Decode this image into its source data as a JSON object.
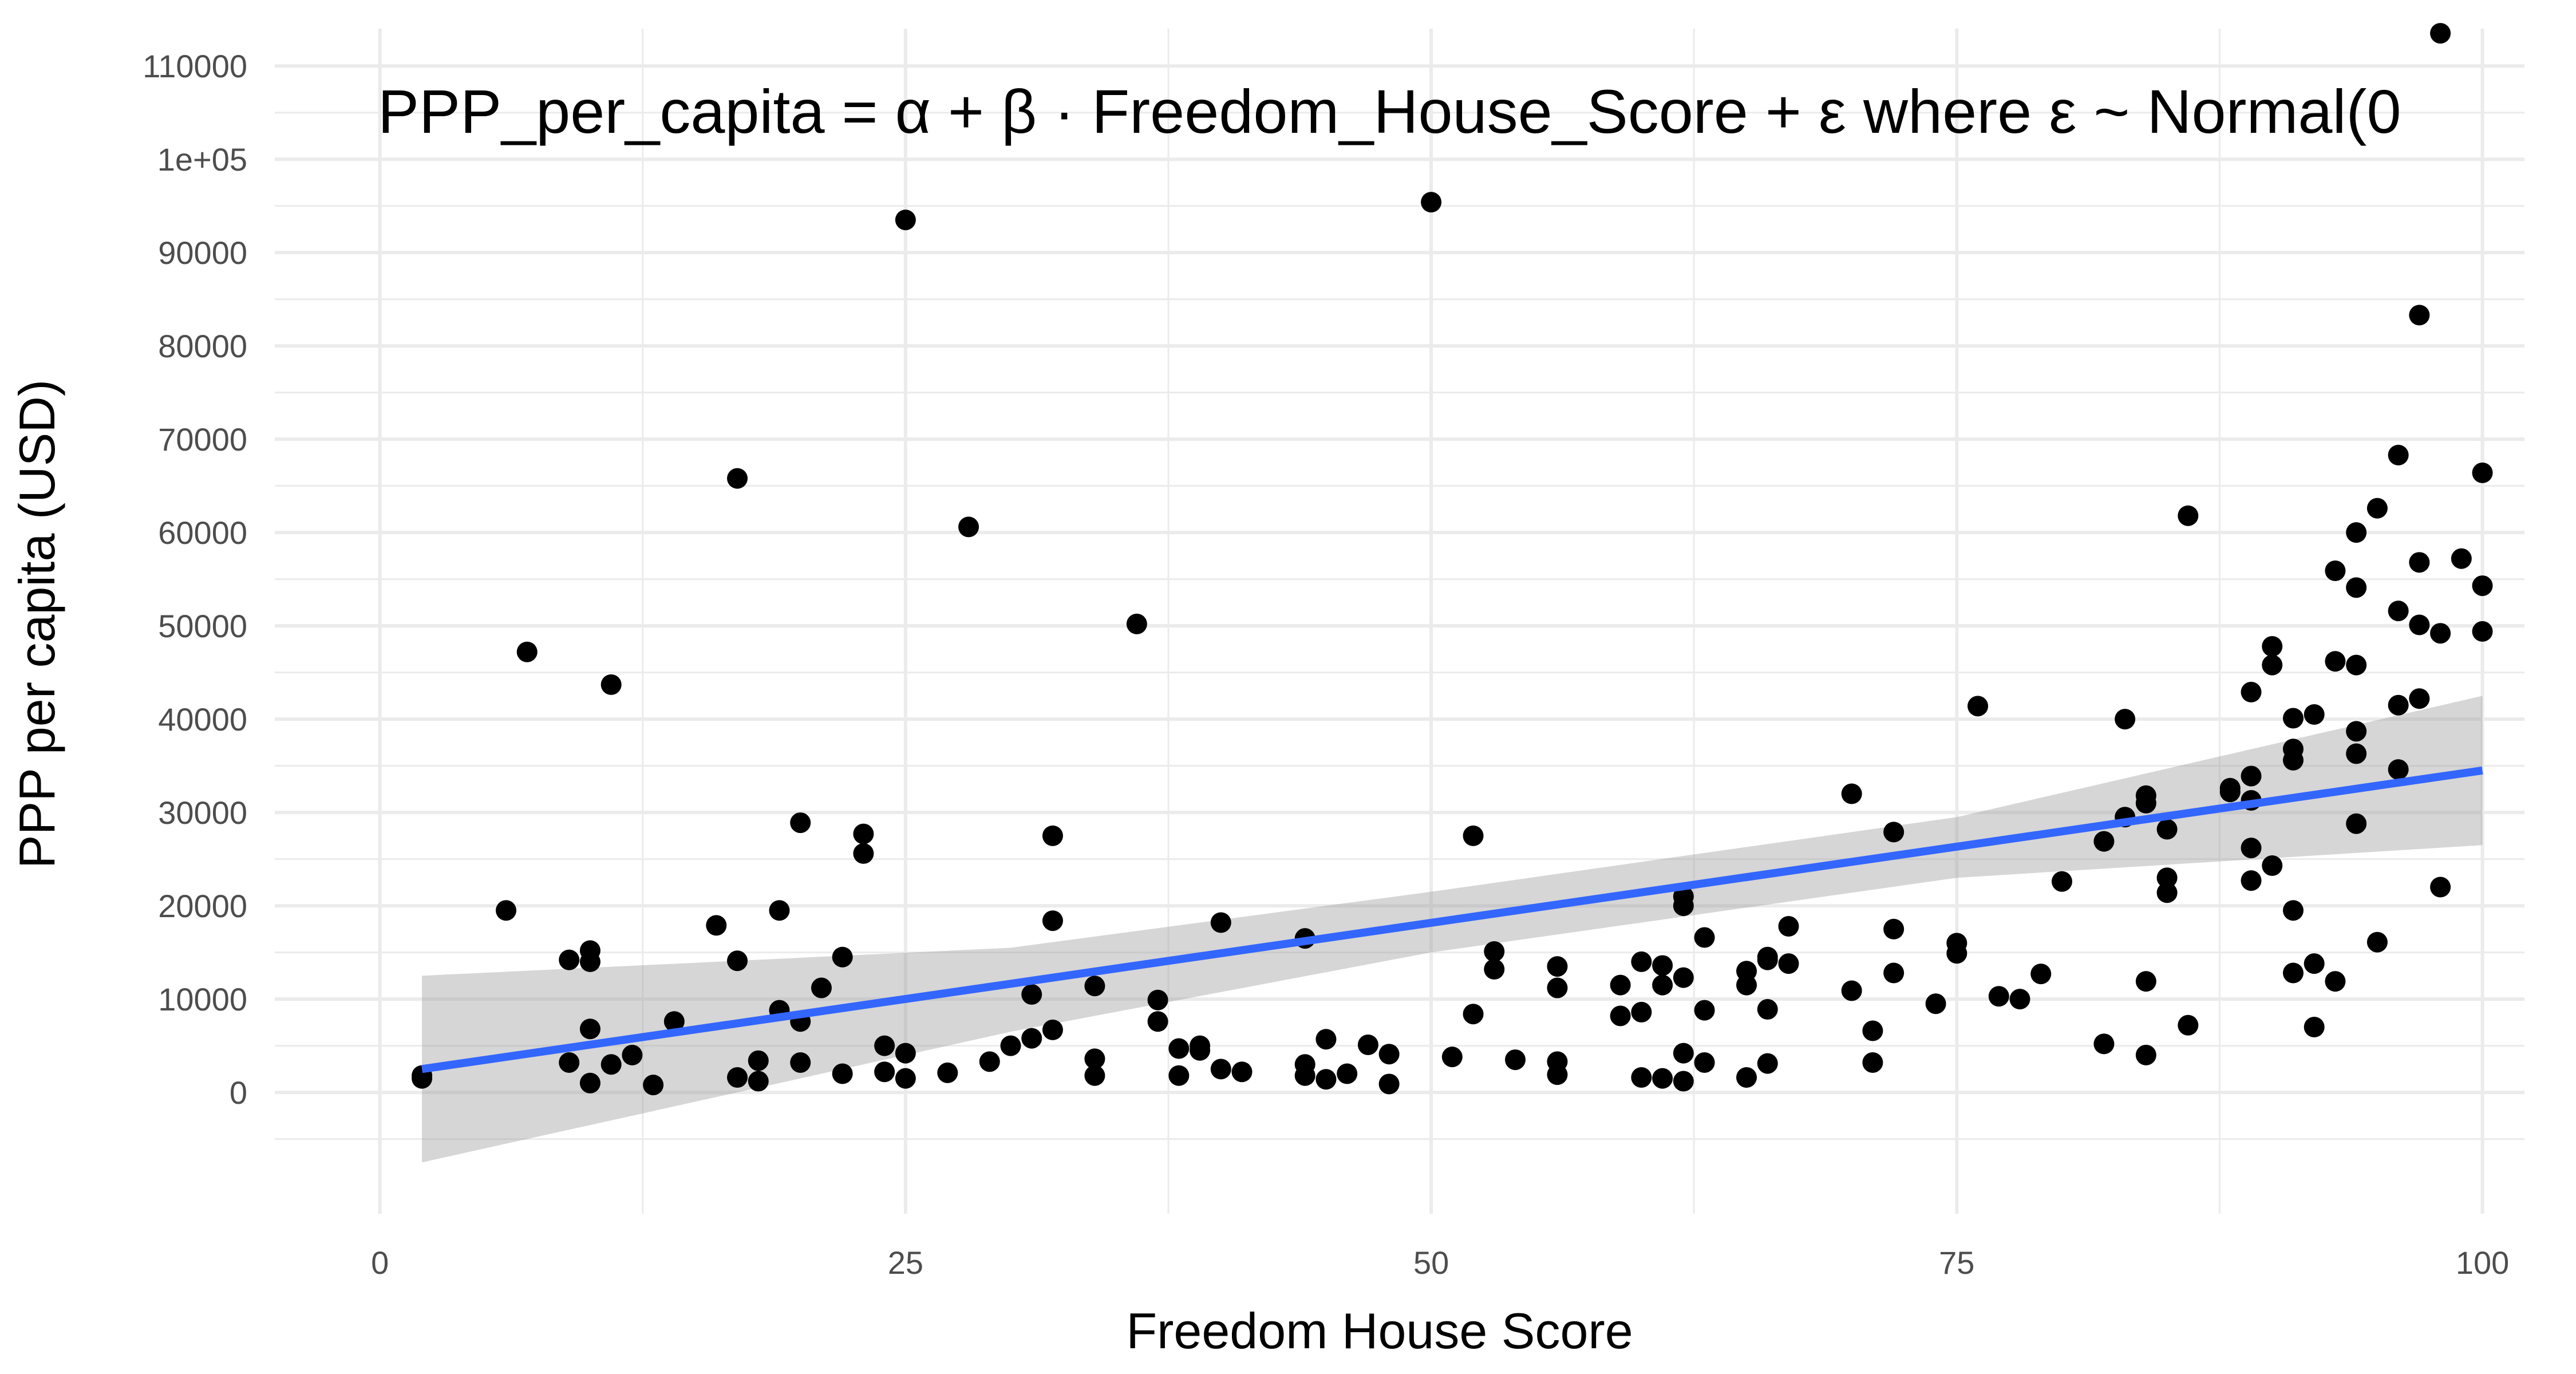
{
  "chart_data": {
    "type": "scatter",
    "xlabel": "Freedom House Score",
    "ylabel": "PPP per capita (USD)",
    "annotation": "PPP_per_capita = α + β · Freedom_House_Score + ε  where  ε ~ Normal(0",
    "xlim": [
      -5,
      102
    ],
    "ylim": [
      -13000,
      114000
    ],
    "x_ticks": [
      0,
      25,
      50,
      75,
      100
    ],
    "x_tick_labels": [
      "0",
      "25",
      "50",
      "75",
      "100"
    ],
    "y_ticks": [
      0,
      10000,
      20000,
      30000,
      40000,
      50000,
      60000,
      70000,
      80000,
      90000,
      100000,
      110000
    ],
    "y_tick_labels": [
      "0",
      "10000",
      "20000",
      "30000",
      "40000",
      "50000",
      "60000",
      "70000",
      "80000",
      "90000",
      "1e+05",
      "110000"
    ],
    "grid": true,
    "colors": {
      "points": "#000000",
      "fit_line": "#3366FF",
      "ribbon": "#999999",
      "grid": "#ebebeb"
    },
    "fit": {
      "line": [
        [
          2,
          2500
        ],
        [
          100,
          34500
        ]
      ],
      "ribbon": [
        [
          2,
          -7500,
          12500
        ],
        [
          30,
          6500,
          15500
        ],
        [
          50,
          15000,
          21500
        ],
        [
          75,
          23000,
          29500
        ],
        [
          100,
          26500,
          42500
        ]
      ]
    },
    "points": [
      [
        2,
        1500
      ],
      [
        2,
        1800
      ],
      [
        6,
        19500
      ],
      [
        7,
        47200
      ],
      [
        9,
        14200
      ],
      [
        9,
        3200
      ],
      [
        10,
        15200
      ],
      [
        10,
        14000
      ],
      [
        10,
        6800
      ],
      [
        10,
        1000
      ],
      [
        11,
        43700
      ],
      [
        11,
        3000
      ],
      [
        12,
        4000
      ],
      [
        13,
        800
      ],
      [
        14,
        7600
      ],
      [
        16,
        17900
      ],
      [
        17,
        65800
      ],
      [
        17,
        14100
      ],
      [
        17,
        1600
      ],
      [
        18,
        3400
      ],
      [
        18,
        1200
      ],
      [
        19,
        19500
      ],
      [
        19,
        8800
      ],
      [
        20,
        28900
      ],
      [
        20,
        7600
      ],
      [
        20,
        3200
      ],
      [
        21,
        11200
      ],
      [
        22,
        14500
      ],
      [
        22,
        2000
      ],
      [
        23,
        27700
      ],
      [
        23,
        25600
      ],
      [
        24,
        5000
      ],
      [
        24,
        2200
      ],
      [
        25,
        93500
      ],
      [
        25,
        4200
      ],
      [
        25,
        1500
      ],
      [
        27,
        2100
      ],
      [
        28,
        60600
      ],
      [
        29,
        3300
      ],
      [
        30,
        5000
      ],
      [
        31,
        10500
      ],
      [
        31,
        5800
      ],
      [
        32,
        27500
      ],
      [
        32,
        18400
      ],
      [
        32,
        6700
      ],
      [
        34,
        11400
      ],
      [
        34,
        3600
      ],
      [
        34,
        1800
      ],
      [
        36,
        50200
      ],
      [
        37,
        9900
      ],
      [
        37,
        7600
      ],
      [
        38,
        4700
      ],
      [
        38,
        1800
      ],
      [
        39,
        5000
      ],
      [
        39,
        4500
      ],
      [
        40,
        18200
      ],
      [
        40,
        2500
      ],
      [
        41,
        2200
      ],
      [
        44,
        16500
      ],
      [
        44,
        3000
      ],
      [
        44,
        1800
      ],
      [
        45,
        5700
      ],
      [
        45,
        1400
      ],
      [
        46,
        2000
      ],
      [
        47,
        5100
      ],
      [
        48,
        4100
      ],
      [
        48,
        900
      ],
      [
        50,
        95400
      ],
      [
        51,
        3800
      ],
      [
        52,
        27500
      ],
      [
        52,
        8400
      ],
      [
        53,
        15100
      ],
      [
        53,
        13200
      ],
      [
        54,
        3500
      ],
      [
        56,
        13500
      ],
      [
        56,
        11200
      ],
      [
        56,
        3300
      ],
      [
        56,
        1900
      ],
      [
        59,
        11500
      ],
      [
        59,
        8200
      ],
      [
        60,
        14000
      ],
      [
        60,
        8600
      ],
      [
        60,
        1600
      ],
      [
        61,
        13600
      ],
      [
        61,
        11500
      ],
      [
        61,
        1500
      ],
      [
        62,
        21000
      ],
      [
        62,
        20000
      ],
      [
        62,
        12300
      ],
      [
        62,
        4200
      ],
      [
        62,
        1200
      ],
      [
        63,
        16600
      ],
      [
        63,
        8800
      ],
      [
        63,
        3200
      ],
      [
        65,
        13000
      ],
      [
        65,
        11500
      ],
      [
        65,
        1600
      ],
      [
        66,
        14500
      ],
      [
        66,
        14200
      ],
      [
        66,
        8900
      ],
      [
        66,
        3100
      ],
      [
        67,
        17800
      ],
      [
        67,
        13800
      ],
      [
        70,
        32000
      ],
      [
        70,
        10900
      ],
      [
        71,
        6600
      ],
      [
        71,
        3200
      ],
      [
        72,
        27900
      ],
      [
        72,
        17500
      ],
      [
        72,
        12800
      ],
      [
        74,
        9500
      ],
      [
        75,
        16000
      ],
      [
        75,
        14900
      ],
      [
        76,
        41400
      ],
      [
        77,
        10300
      ],
      [
        78,
        10000
      ],
      [
        79,
        12700
      ],
      [
        80,
        22600
      ],
      [
        82,
        26900
      ],
      [
        82,
        5200
      ],
      [
        83,
        40000
      ],
      [
        83,
        29500
      ],
      [
        84,
        31800
      ],
      [
        84,
        31000
      ],
      [
        84,
        11900
      ],
      [
        84,
        4000
      ],
      [
        85,
        28200
      ],
      [
        85,
        23000
      ],
      [
        85,
        21400
      ],
      [
        86,
        61800
      ],
      [
        86,
        7200
      ],
      [
        88,
        32600
      ],
      [
        88,
        32200
      ],
      [
        89,
        33900
      ],
      [
        89,
        42900
      ],
      [
        89,
        31300
      ],
      [
        89,
        26200
      ],
      [
        89,
        22700
      ],
      [
        90,
        47800
      ],
      [
        90,
        45800
      ],
      [
        90,
        24300
      ],
      [
        91,
        40100
      ],
      [
        91,
        36800
      ],
      [
        91,
        35600
      ],
      [
        91,
        19500
      ],
      [
        91,
        12800
      ],
      [
        92,
        40500
      ],
      [
        92,
        13800
      ],
      [
        92,
        7000
      ],
      [
        93,
        55900
      ],
      [
        93,
        46200
      ],
      [
        93,
        11900
      ],
      [
        94,
        60000
      ],
      [
        94,
        54100
      ],
      [
        94,
        45800
      ],
      [
        94,
        38700
      ],
      [
        94,
        36300
      ],
      [
        94,
        28800
      ],
      [
        95,
        62600
      ],
      [
        95,
        16100
      ],
      [
        96,
        68300
      ],
      [
        96,
        51600
      ],
      [
        96,
        41500
      ],
      [
        96,
        34600
      ],
      [
        97,
        83300
      ],
      [
        97,
        56800
      ],
      [
        97,
        50100
      ],
      [
        97,
        42200
      ],
      [
        98,
        113500
      ],
      [
        98,
        49200
      ],
      [
        98,
        22000
      ],
      [
        99,
        57200
      ],
      [
        100,
        66400
      ],
      [
        100,
        54300
      ],
      [
        100,
        49400
      ]
    ]
  }
}
